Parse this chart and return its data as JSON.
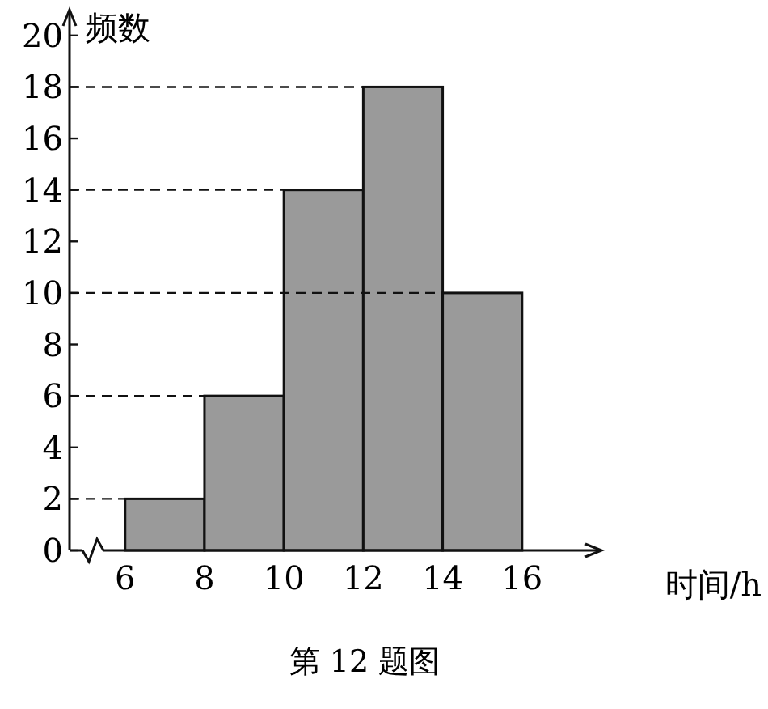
{
  "chart_data": {
    "type": "histogram",
    "bins": [
      6,
      8,
      10,
      12,
      14,
      16
    ],
    "values": [
      2,
      6,
      14,
      18,
      10
    ],
    "color": "#9a9a9a",
    "xlim": [
      4.6,
      18
    ],
    "ylim": [
      0,
      21
    ],
    "xticks": [
      6,
      8,
      10,
      12,
      14,
      16
    ],
    "yticks": [
      0,
      2,
      4,
      6,
      8,
      10,
      12,
      14,
      16,
      18,
      20
    ],
    "ylabel": "频数",
    "xlabel": "时间/h",
    "annotations": [
      "第 12 题图"
    ],
    "grid": false,
    "ref_lines": [
      {
        "axis": "y",
        "value": 2,
        "line_style": "dashed"
      },
      {
        "axis": "y",
        "value": 6,
        "line_style": "dashed"
      },
      {
        "axis": "y",
        "value": 14,
        "line_style": "dashed"
      },
      {
        "axis": "y",
        "value": 18,
        "line_style": "dashed"
      },
      {
        "axis": "y",
        "value": 10,
        "line_style": "dashed"
      }
    ]
  }
}
